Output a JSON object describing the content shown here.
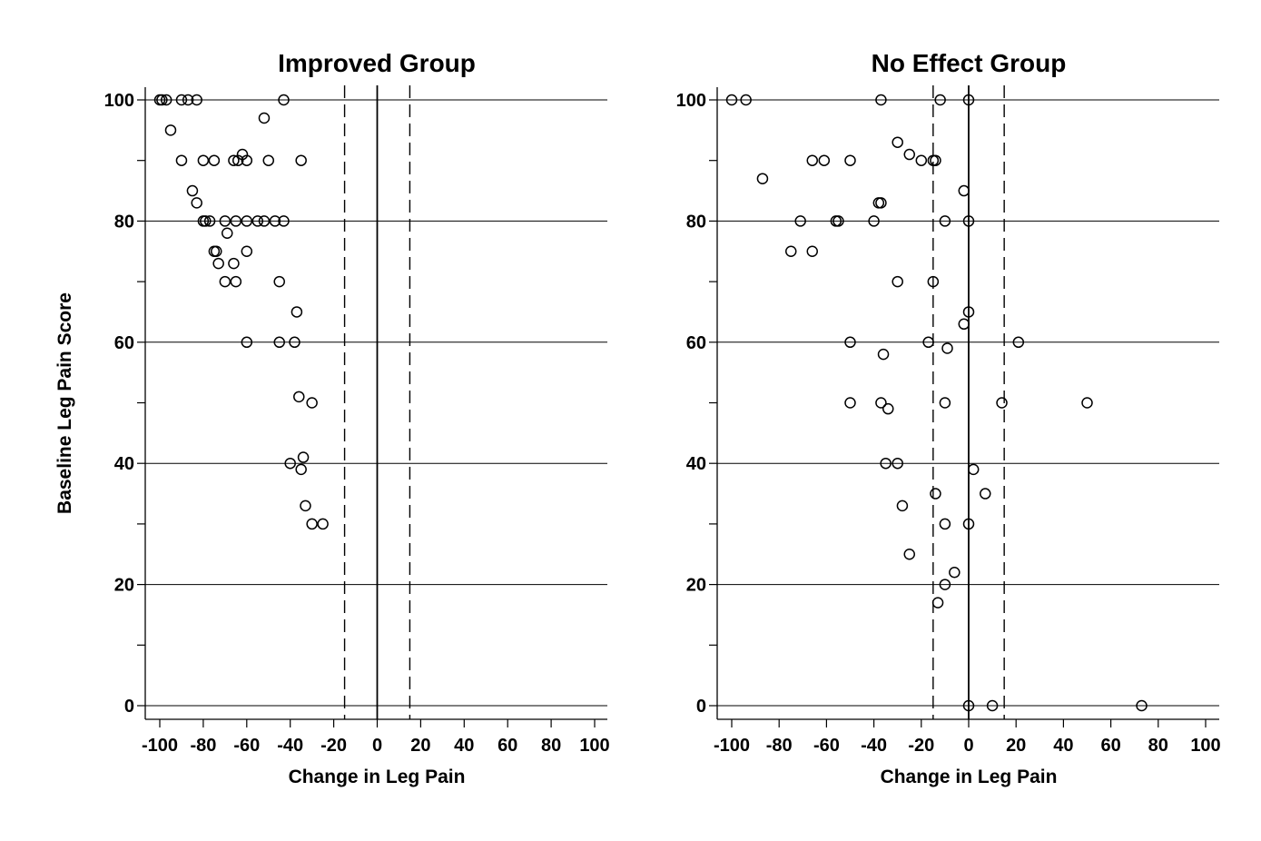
{
  "chart_data": {
    "type": "scatter",
    "ylabel": "Baseline Leg Pain Score",
    "panels": [
      {
        "title": "Improved Group",
        "xlabel": "Change in Leg Pain",
        "xlim": [
          -100,
          100
        ],
        "ylim": [
          0,
          100
        ],
        "x_ticks": [
          "-100",
          "-80",
          "-60",
          "-40",
          "-20",
          "0",
          "20",
          "40",
          "60",
          "80",
          "100"
        ],
        "y_ticks": [
          "0",
          "20",
          "40",
          "60",
          "80",
          "100"
        ],
        "reference_lines": {
          "solid_x": [
            0
          ],
          "dashed_x": [
            -15,
            15
          ]
        },
        "points": [
          [
            -100,
            100
          ],
          [
            -99,
            100
          ],
          [
            -97,
            100
          ],
          [
            -90,
            100
          ],
          [
            -87,
            100
          ],
          [
            -83,
            100
          ],
          [
            -43,
            100
          ],
          [
            -52,
            97
          ],
          [
            -95,
            95
          ],
          [
            -90,
            90
          ],
          [
            -80,
            90
          ],
          [
            -75,
            90
          ],
          [
            -66,
            90
          ],
          [
            -64,
            90
          ],
          [
            -62,
            91
          ],
          [
            -60,
            90
          ],
          [
            -50,
            90
          ],
          [
            -35,
            90
          ],
          [
            -85,
            85
          ],
          [
            -83,
            83
          ],
          [
            -80,
            80
          ],
          [
            -79,
            80
          ],
          [
            -77,
            80
          ],
          [
            -70,
            80
          ],
          [
            -65,
            80
          ],
          [
            -60,
            80
          ],
          [
            -55,
            80
          ],
          [
            -52,
            80
          ],
          [
            -47,
            80
          ],
          [
            -43,
            80
          ],
          [
            -69,
            78
          ],
          [
            -75,
            75
          ],
          [
            -74,
            75
          ],
          [
            -60,
            75
          ],
          [
            -73,
            73
          ],
          [
            -66,
            73
          ],
          [
            -70,
            70
          ],
          [
            -65,
            70
          ],
          [
            -45,
            70
          ],
          [
            -37,
            65
          ],
          [
            -60,
            60
          ],
          [
            -45,
            60
          ],
          [
            -38,
            60
          ],
          [
            -36,
            51
          ],
          [
            -30,
            50
          ],
          [
            -34,
            41
          ],
          [
            -40,
            40
          ],
          [
            -35,
            39
          ],
          [
            -33,
            33
          ],
          [
            -30,
            30
          ],
          [
            -25,
            30
          ]
        ]
      },
      {
        "title": "No Effect Group",
        "xlabel": "Change in Leg Pain",
        "xlim": [
          -100,
          100
        ],
        "ylim": [
          0,
          100
        ],
        "x_ticks": [
          "-100",
          "-80",
          "-60",
          "-40",
          "-20",
          "0",
          "20",
          "40",
          "60",
          "80",
          "100"
        ],
        "y_ticks": [
          "0",
          "20",
          "40",
          "60",
          "80",
          "100"
        ],
        "reference_lines": {
          "solid_x": [
            0
          ],
          "dashed_x": [
            -15,
            15
          ]
        },
        "points": [
          [
            -100,
            100
          ],
          [
            -94,
            100
          ],
          [
            -37,
            100
          ],
          [
            -12,
            100
          ],
          [
            0,
            100
          ],
          [
            -30,
            93
          ],
          [
            -25,
            91
          ],
          [
            -66,
            90
          ],
          [
            -61,
            90
          ],
          [
            -50,
            90
          ],
          [
            -20,
            90
          ],
          [
            -15,
            90
          ],
          [
            -14,
            90
          ],
          [
            -87,
            87
          ],
          [
            -2,
            85
          ],
          [
            -38,
            83
          ],
          [
            -37,
            83
          ],
          [
            -71,
            80
          ],
          [
            -56,
            80
          ],
          [
            -55,
            80
          ],
          [
            -40,
            80
          ],
          [
            -10,
            80
          ],
          [
            0,
            80
          ],
          [
            -75,
            75
          ],
          [
            -66,
            75
          ],
          [
            -30,
            70
          ],
          [
            -15,
            70
          ],
          [
            0,
            65
          ],
          [
            -2,
            63
          ],
          [
            -50,
            60
          ],
          [
            -17,
            60
          ],
          [
            21,
            60
          ],
          [
            -9,
            59
          ],
          [
            -36,
            58
          ],
          [
            -50,
            50
          ],
          [
            -37,
            50
          ],
          [
            -10,
            50
          ],
          [
            14,
            50
          ],
          [
            50,
            50
          ],
          [
            -34,
            49
          ],
          [
            -35,
            40
          ],
          [
            -30,
            40
          ],
          [
            2,
            39
          ],
          [
            -14,
            35
          ],
          [
            7,
            35
          ],
          [
            -28,
            33
          ],
          [
            -10,
            30
          ],
          [
            0,
            30
          ],
          [
            -25,
            25
          ],
          [
            -6,
            22
          ],
          [
            -10,
            20
          ],
          [
            -13,
            17
          ],
          [
            0,
            0
          ],
          [
            10,
            0
          ],
          [
            73,
            0
          ]
        ]
      }
    ]
  }
}
